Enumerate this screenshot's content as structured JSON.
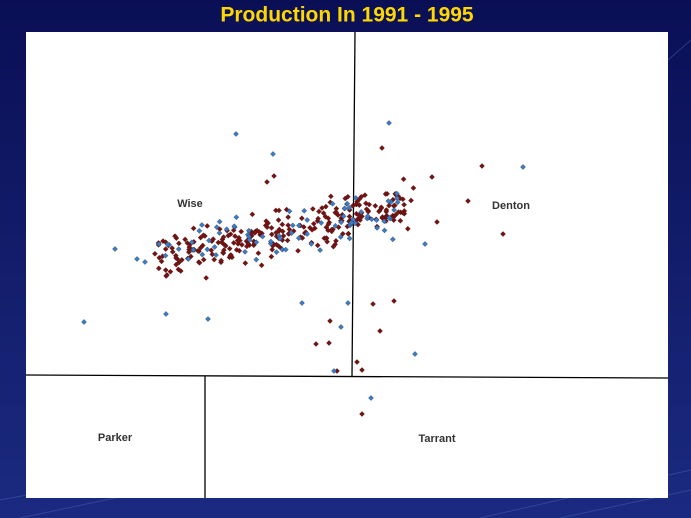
{
  "header": {
    "title": "Production In 1991 - 1995"
  },
  "map": {
    "counties": [
      {
        "label": "Wise"
      },
      {
        "label": "Denton"
      },
      {
        "label": "Parker"
      },
      {
        "label": "Tarrant"
      }
    ]
  }
}
